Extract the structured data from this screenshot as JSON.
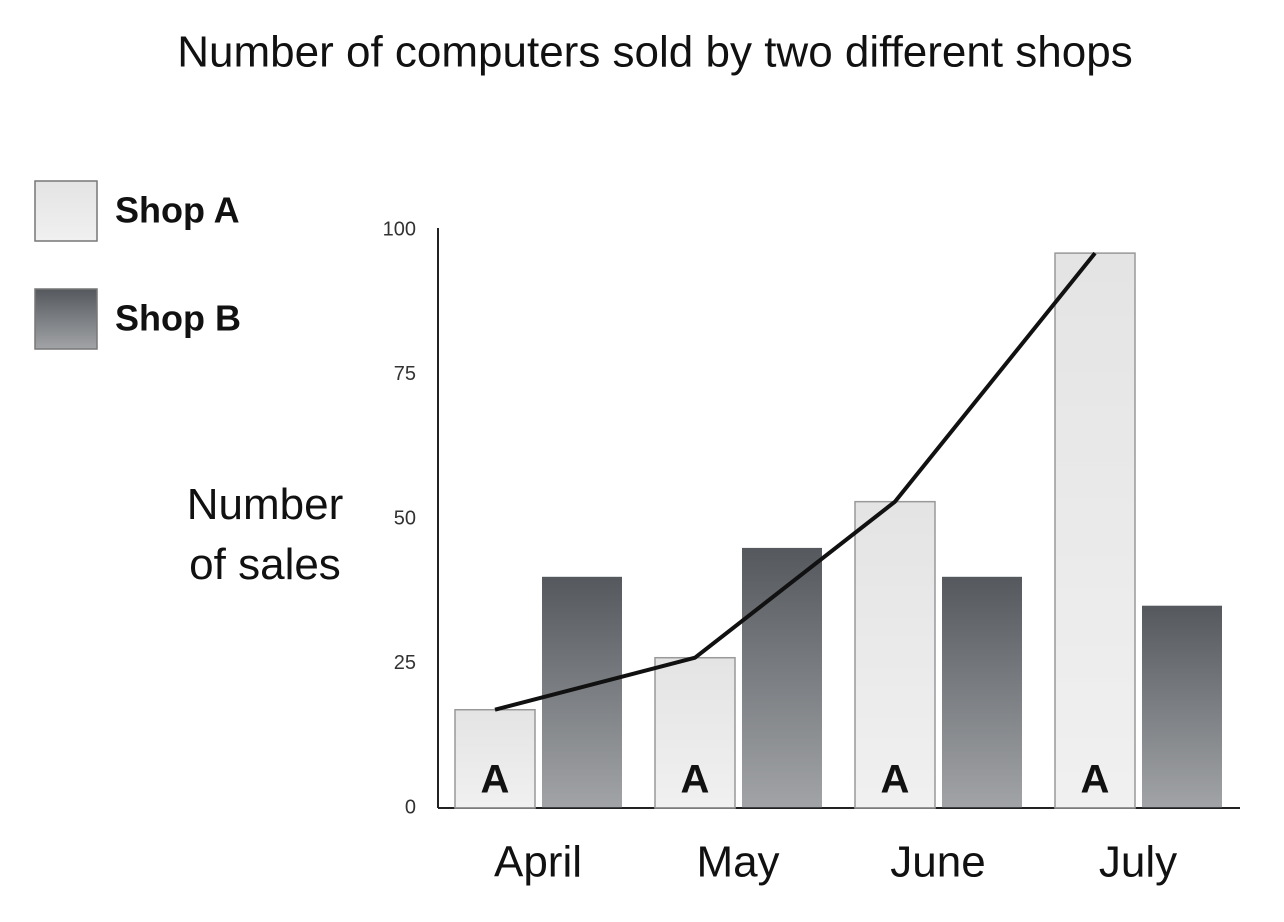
{
  "chart_data": {
    "type": "bar",
    "title": "Number of computers sold by two different shops",
    "ylabel": "Number of sales",
    "categories": [
      "April",
      "May",
      "June",
      "July"
    ],
    "series": [
      {
        "name": "Shop A",
        "color": "#e4e4e4",
        "values": [
          17,
          26,
          53,
          96
        ],
        "bar_label": "A",
        "line": true,
        "line_color": "#111111"
      },
      {
        "name": "Shop B",
        "color": "#55595e",
        "values": [
          40,
          45,
          40,
          35
        ]
      }
    ],
    "ylim": [
      0,
      100
    ],
    "yticks": [
      0,
      25,
      50,
      75,
      100
    ],
    "grid": false,
    "legend": "upper left"
  }
}
